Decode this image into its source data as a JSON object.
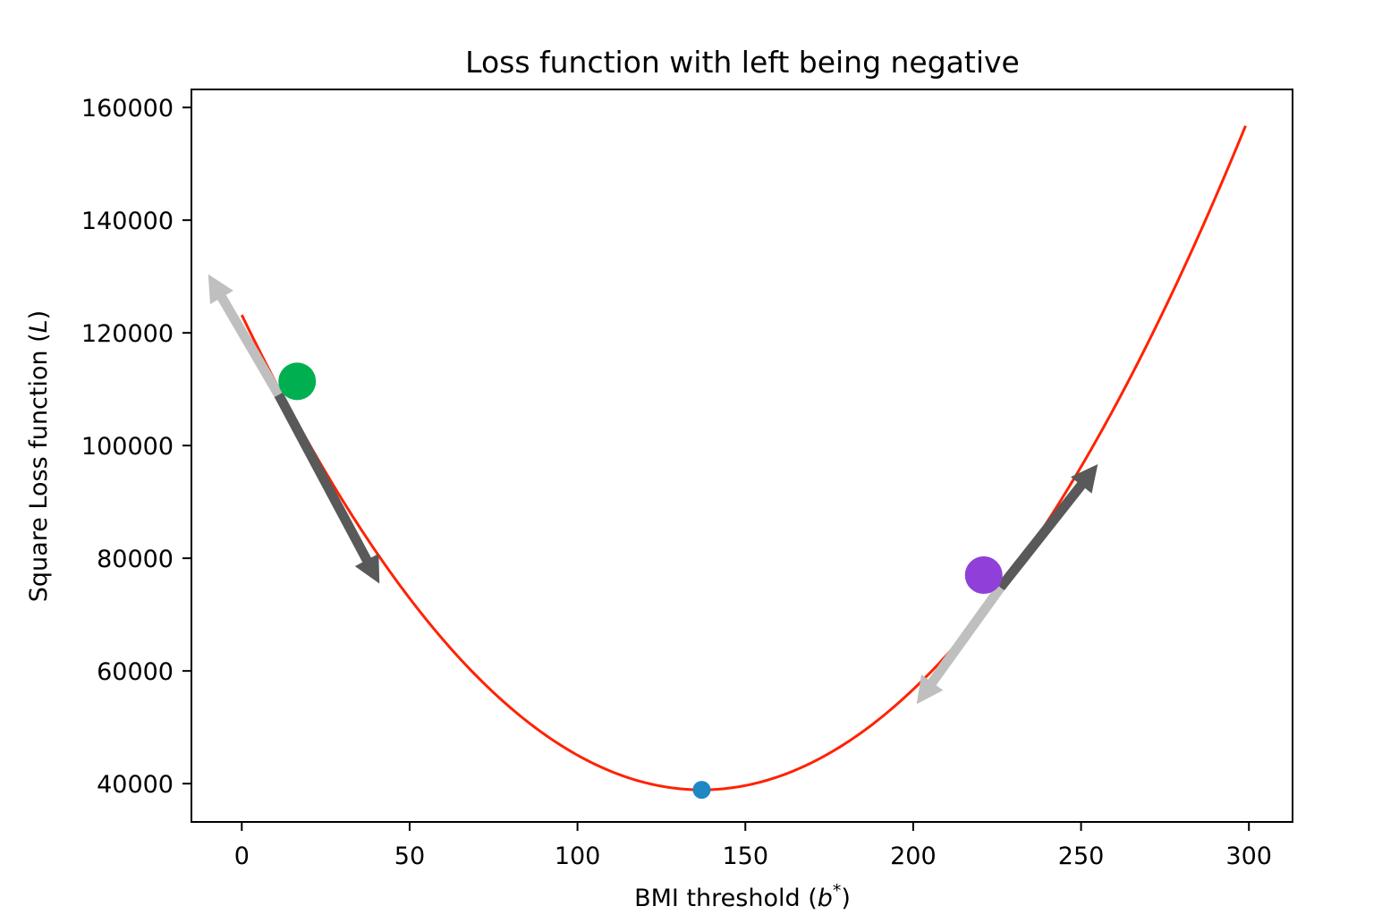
{
  "chart_data": {
    "type": "line",
    "title": "Loss function with left being negative",
    "xlabel": "BMI threshold",
    "xlabel_math": "b",
    "xlabel_math_sup": "*",
    "ylabel": "Square Loss function",
    "ylabel_math": "L",
    "xlim": [
      -15,
      313
    ],
    "ylim": [
      33200,
      163200
    ],
    "xticks": [
      0,
      50,
      100,
      150,
      200,
      250,
      300
    ],
    "yticks": [
      40000,
      60000,
      80000,
      100000,
      120000,
      140000,
      160000
    ],
    "grid": false,
    "legend": "none",
    "curve": {
      "name": "loss-curve",
      "color": "#ff2200",
      "model": "quadratic",
      "vertex_x": 137,
      "vertex_y": 38900,
      "coefficient": 4.49,
      "x_range": [
        0,
        299
      ]
    },
    "points": [
      {
        "name": "minimum-point",
        "x": 137,
        "y": 38900,
        "color": "#1f87c4",
        "size": "small"
      },
      {
        "name": "left-point",
        "x": 16.5,
        "y": 111400,
        "color": "#00b050",
        "size": "large"
      },
      {
        "name": "right-point",
        "x": 221,
        "y": 77000,
        "color": "#9040d8",
        "size": "large"
      }
    ],
    "arrows": [
      {
        "name": "left-gradient-arrow",
        "from": [
          11,
          109000
        ],
        "to": [
          -10,
          130400
        ],
        "color": "#bfbfbf"
      },
      {
        "name": "left-descent-arrow",
        "from": [
          11,
          109000
        ],
        "to": [
          41,
          75500
        ],
        "color": "#595959"
      },
      {
        "name": "right-gradient-arrow",
        "from": [
          226,
          74800
        ],
        "to": [
          255,
          96700
        ],
        "color": "#595959"
      },
      {
        "name": "right-descent-arrow",
        "from": [
          226,
          74800
        ],
        "to": [
          201,
          54100
        ],
        "color": "#bfbfbf"
      }
    ]
  }
}
